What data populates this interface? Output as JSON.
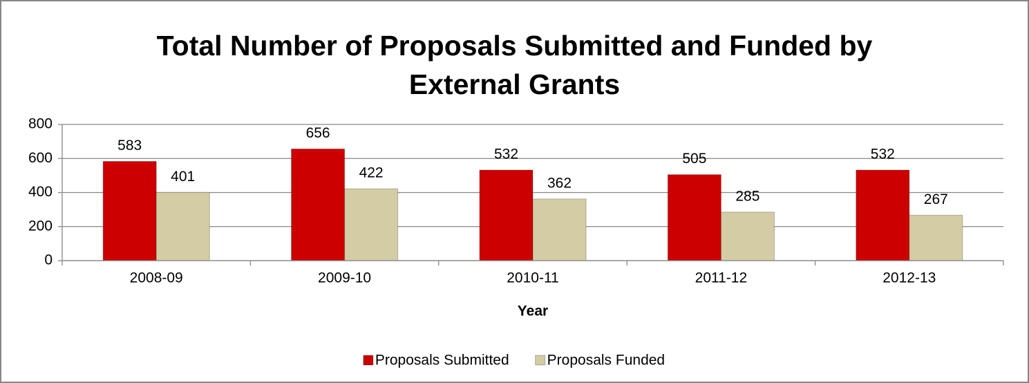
{
  "chart_data": {
    "type": "bar",
    "title": "Total Number of Proposals Submitted and Funded by External Grants",
    "x_label": "Year",
    "categories": [
      "2008-09",
      "2009-10",
      "2010-11",
      "2011-12",
      "2012-13"
    ],
    "series": [
      {
        "name": "Proposals Submitted",
        "color": "#cc0000",
        "values": [
          583,
          656,
          532,
          505,
          532
        ]
      },
      {
        "name": "Proposals Funded",
        "color": "#d4cca4",
        "values": [
          401,
          422,
          362,
          285,
          267
        ]
      }
    ],
    "ylim": [
      0,
      800
    ],
    "yticks": [
      0,
      200,
      400,
      600,
      800
    ],
    "grid": true,
    "legend": "bottom"
  }
}
